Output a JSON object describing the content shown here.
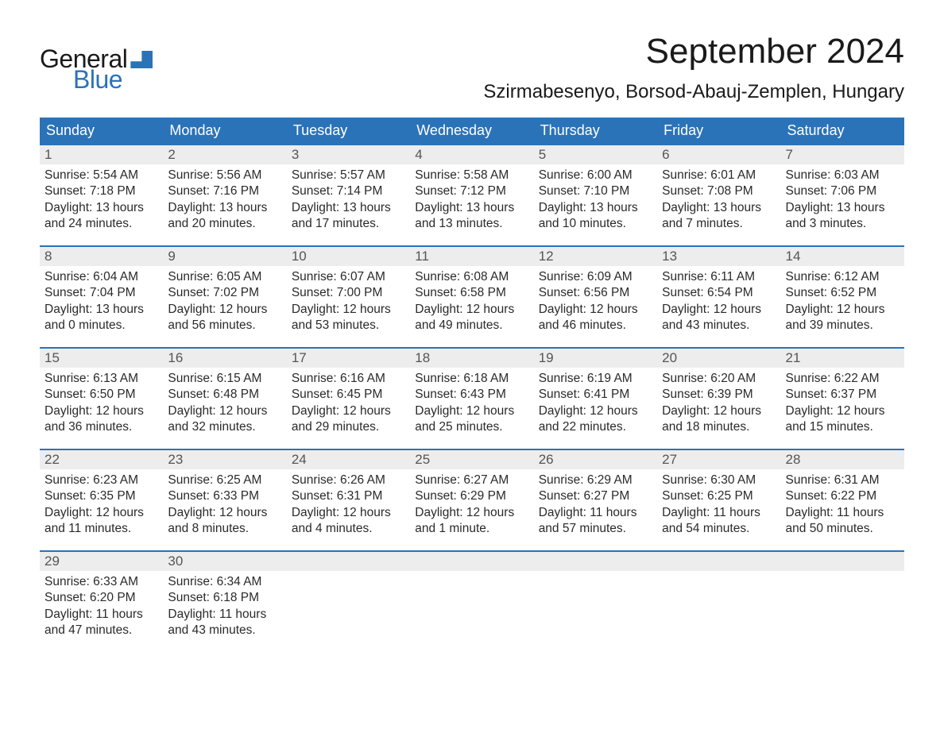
{
  "logo": {
    "line1": "General",
    "line2": "Blue",
    "text_color": "#1a1a1a",
    "accent_color": "#2b73b8"
  },
  "header": {
    "title": "September 2024",
    "location": "Szirmabesenyo, Borsod-Abauj-Zemplen, Hungary",
    "title_fontsize": 44,
    "location_fontsize": 24
  },
  "calendar": {
    "day_headers": [
      "Sunday",
      "Monday",
      "Tuesday",
      "Wednesday",
      "Thursday",
      "Friday",
      "Saturday"
    ],
    "header_bg": "#2b73b8",
    "header_text_color": "#ffffff",
    "daynum_bg": "#ededed",
    "daynum_text_color": "#555555",
    "cell_border_color": "#2b73b8",
    "body_text_color": "#2a2a2a",
    "body_fontsize": 15.5,
    "weeks": [
      [
        {
          "n": "1",
          "sunrise": "Sunrise: 5:54 AM",
          "sunset": "Sunset: 7:18 PM",
          "d1": "Daylight: 13 hours",
          "d2": "and 24 minutes."
        },
        {
          "n": "2",
          "sunrise": "Sunrise: 5:56 AM",
          "sunset": "Sunset: 7:16 PM",
          "d1": "Daylight: 13 hours",
          "d2": "and 20 minutes."
        },
        {
          "n": "3",
          "sunrise": "Sunrise: 5:57 AM",
          "sunset": "Sunset: 7:14 PM",
          "d1": "Daylight: 13 hours",
          "d2": "and 17 minutes."
        },
        {
          "n": "4",
          "sunrise": "Sunrise: 5:58 AM",
          "sunset": "Sunset: 7:12 PM",
          "d1": "Daylight: 13 hours",
          "d2": "and 13 minutes."
        },
        {
          "n": "5",
          "sunrise": "Sunrise: 6:00 AM",
          "sunset": "Sunset: 7:10 PM",
          "d1": "Daylight: 13 hours",
          "d2": "and 10 minutes."
        },
        {
          "n": "6",
          "sunrise": "Sunrise: 6:01 AM",
          "sunset": "Sunset: 7:08 PM",
          "d1": "Daylight: 13 hours",
          "d2": "and 7 minutes."
        },
        {
          "n": "7",
          "sunrise": "Sunrise: 6:03 AM",
          "sunset": "Sunset: 7:06 PM",
          "d1": "Daylight: 13 hours",
          "d2": "and 3 minutes."
        }
      ],
      [
        {
          "n": "8",
          "sunrise": "Sunrise: 6:04 AM",
          "sunset": "Sunset: 7:04 PM",
          "d1": "Daylight: 13 hours",
          "d2": "and 0 minutes."
        },
        {
          "n": "9",
          "sunrise": "Sunrise: 6:05 AM",
          "sunset": "Sunset: 7:02 PM",
          "d1": "Daylight: 12 hours",
          "d2": "and 56 minutes."
        },
        {
          "n": "10",
          "sunrise": "Sunrise: 6:07 AM",
          "sunset": "Sunset: 7:00 PM",
          "d1": "Daylight: 12 hours",
          "d2": "and 53 minutes."
        },
        {
          "n": "11",
          "sunrise": "Sunrise: 6:08 AM",
          "sunset": "Sunset: 6:58 PM",
          "d1": "Daylight: 12 hours",
          "d2": "and 49 minutes."
        },
        {
          "n": "12",
          "sunrise": "Sunrise: 6:09 AM",
          "sunset": "Sunset: 6:56 PM",
          "d1": "Daylight: 12 hours",
          "d2": "and 46 minutes."
        },
        {
          "n": "13",
          "sunrise": "Sunrise: 6:11 AM",
          "sunset": "Sunset: 6:54 PM",
          "d1": "Daylight: 12 hours",
          "d2": "and 43 minutes."
        },
        {
          "n": "14",
          "sunrise": "Sunrise: 6:12 AM",
          "sunset": "Sunset: 6:52 PM",
          "d1": "Daylight: 12 hours",
          "d2": "and 39 minutes."
        }
      ],
      [
        {
          "n": "15",
          "sunrise": "Sunrise: 6:13 AM",
          "sunset": "Sunset: 6:50 PM",
          "d1": "Daylight: 12 hours",
          "d2": "and 36 minutes."
        },
        {
          "n": "16",
          "sunrise": "Sunrise: 6:15 AM",
          "sunset": "Sunset: 6:48 PM",
          "d1": "Daylight: 12 hours",
          "d2": "and 32 minutes."
        },
        {
          "n": "17",
          "sunrise": "Sunrise: 6:16 AM",
          "sunset": "Sunset: 6:45 PM",
          "d1": "Daylight: 12 hours",
          "d2": "and 29 minutes."
        },
        {
          "n": "18",
          "sunrise": "Sunrise: 6:18 AM",
          "sunset": "Sunset: 6:43 PM",
          "d1": "Daylight: 12 hours",
          "d2": "and 25 minutes."
        },
        {
          "n": "19",
          "sunrise": "Sunrise: 6:19 AM",
          "sunset": "Sunset: 6:41 PM",
          "d1": "Daylight: 12 hours",
          "d2": "and 22 minutes."
        },
        {
          "n": "20",
          "sunrise": "Sunrise: 6:20 AM",
          "sunset": "Sunset: 6:39 PM",
          "d1": "Daylight: 12 hours",
          "d2": "and 18 minutes."
        },
        {
          "n": "21",
          "sunrise": "Sunrise: 6:22 AM",
          "sunset": "Sunset: 6:37 PM",
          "d1": "Daylight: 12 hours",
          "d2": "and 15 minutes."
        }
      ],
      [
        {
          "n": "22",
          "sunrise": "Sunrise: 6:23 AM",
          "sunset": "Sunset: 6:35 PM",
          "d1": "Daylight: 12 hours",
          "d2": "and 11 minutes."
        },
        {
          "n": "23",
          "sunrise": "Sunrise: 6:25 AM",
          "sunset": "Sunset: 6:33 PM",
          "d1": "Daylight: 12 hours",
          "d2": "and 8 minutes."
        },
        {
          "n": "24",
          "sunrise": "Sunrise: 6:26 AM",
          "sunset": "Sunset: 6:31 PM",
          "d1": "Daylight: 12 hours",
          "d2": "and 4 minutes."
        },
        {
          "n": "25",
          "sunrise": "Sunrise: 6:27 AM",
          "sunset": "Sunset: 6:29 PM",
          "d1": "Daylight: 12 hours",
          "d2": "and 1 minute."
        },
        {
          "n": "26",
          "sunrise": "Sunrise: 6:29 AM",
          "sunset": "Sunset: 6:27 PM",
          "d1": "Daylight: 11 hours",
          "d2": "and 57 minutes."
        },
        {
          "n": "27",
          "sunrise": "Sunrise: 6:30 AM",
          "sunset": "Sunset: 6:25 PM",
          "d1": "Daylight: 11 hours",
          "d2": "and 54 minutes."
        },
        {
          "n": "28",
          "sunrise": "Sunrise: 6:31 AM",
          "sunset": "Sunset: 6:22 PM",
          "d1": "Daylight: 11 hours",
          "d2": "and 50 minutes."
        }
      ],
      [
        {
          "n": "29",
          "sunrise": "Sunrise: 6:33 AM",
          "sunset": "Sunset: 6:20 PM",
          "d1": "Daylight: 11 hours",
          "d2": "and 47 minutes."
        },
        {
          "n": "30",
          "sunrise": "Sunrise: 6:34 AM",
          "sunset": "Sunset: 6:18 PM",
          "d1": "Daylight: 11 hours",
          "d2": "and 43 minutes."
        },
        null,
        null,
        null,
        null,
        null
      ]
    ]
  }
}
